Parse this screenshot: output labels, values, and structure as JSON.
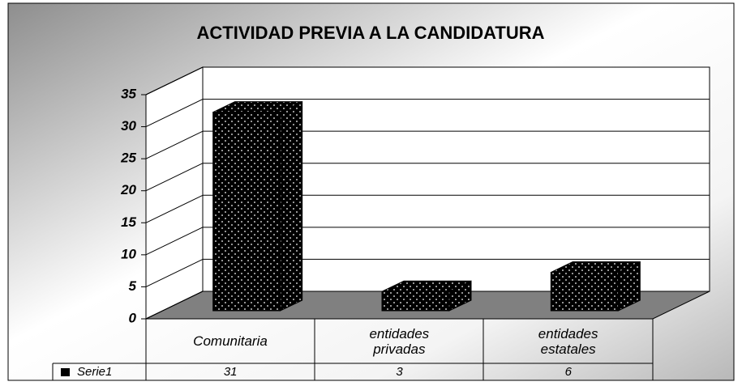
{
  "chart_data": {
    "type": "bar",
    "title": "ACTIVIDAD PREVIA A LA CANDIDATURA",
    "categories": [
      "Comunitaria",
      "entidades privadas",
      "entidades estatales"
    ],
    "series": [
      {
        "name": "Serie1",
        "color": "#000000",
        "values": [
          31,
          3,
          6
        ]
      }
    ],
    "ylim": [
      0,
      35
    ],
    "yticks": [
      0,
      5,
      10,
      15,
      20,
      25,
      30,
      35
    ],
    "grid": true
  }
}
